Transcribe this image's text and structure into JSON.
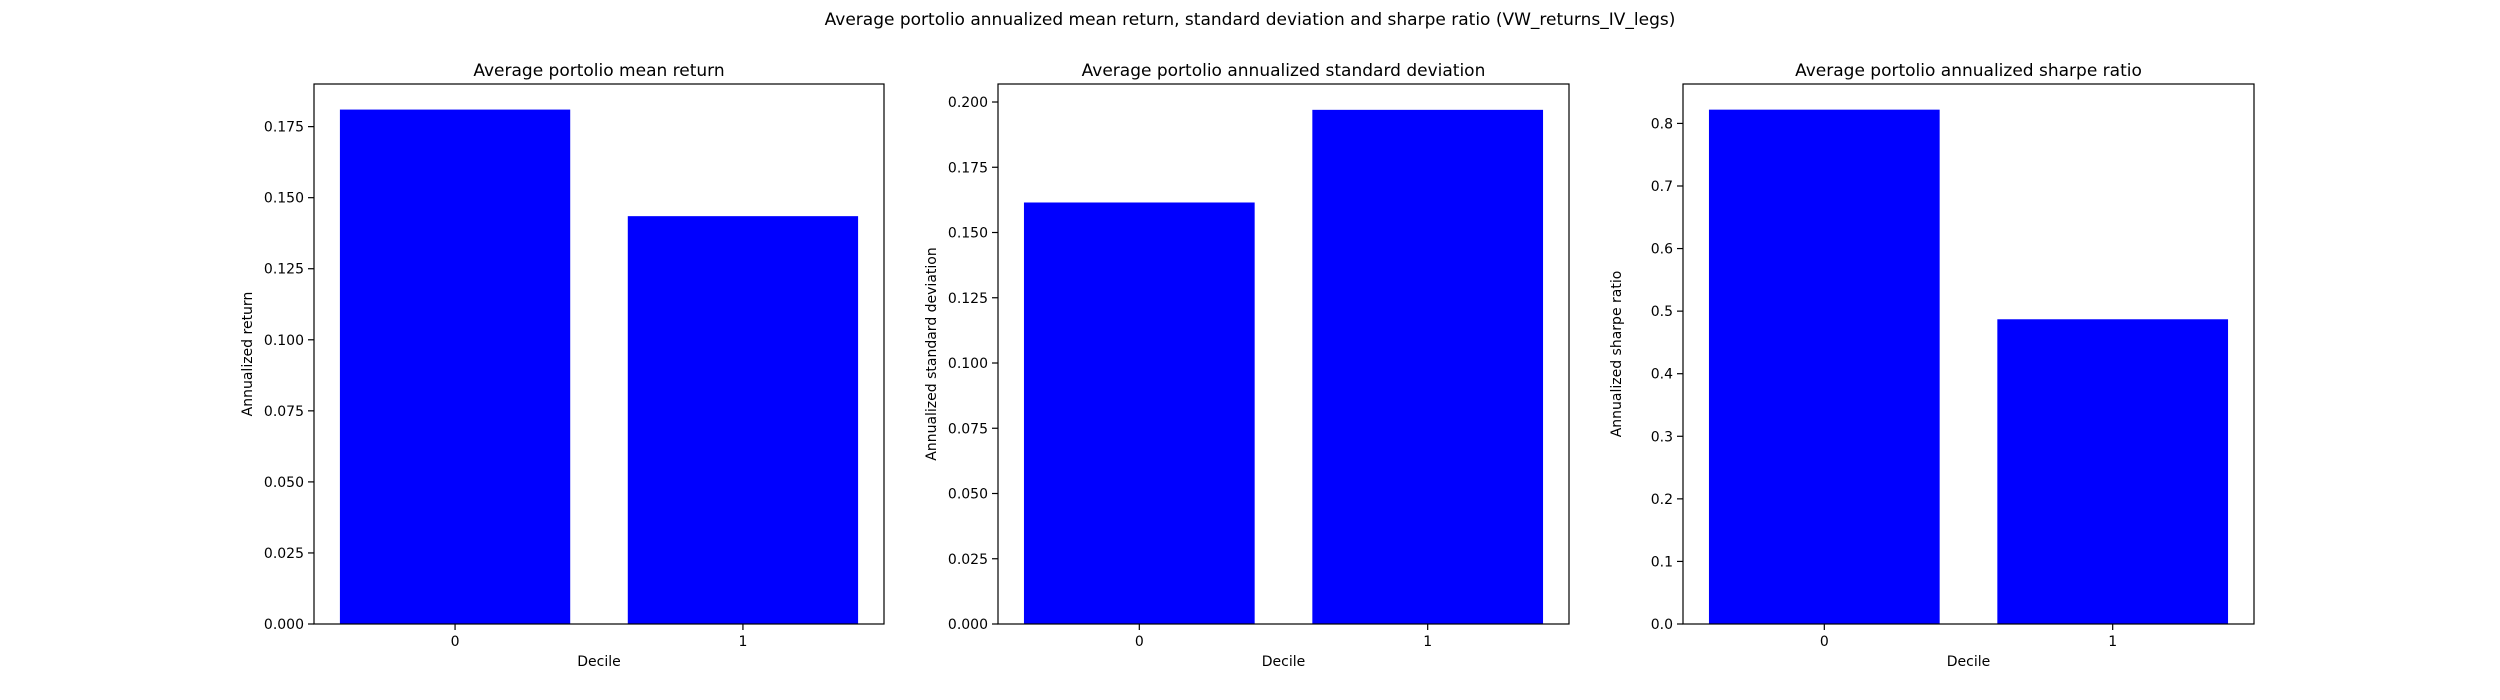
{
  "figure": {
    "suptitle": "Average portolio annualized mean return, standard deviation and sharpe ratio (VW_returns_IV_legs)"
  },
  "chart_data": [
    {
      "type": "bar",
      "title": "Average portolio mean return",
      "xlabel": "Decile",
      "ylabel": "Annualized return",
      "categories": [
        "0",
        "1"
      ],
      "values": [
        0.181,
        0.1435
      ],
      "ylim": [
        0,
        0.19
      ],
      "yticks": [
        0.0,
        0.025,
        0.05,
        0.075,
        0.1,
        0.125,
        0.15,
        0.175
      ],
      "ytick_labels": [
        "0.000",
        "0.025",
        "0.050",
        "0.075",
        "0.100",
        "0.125",
        "0.150",
        "0.175"
      ],
      "bar_color": "#0000ff",
      "grid": false
    },
    {
      "type": "bar",
      "title": "Average portolio annualized standard deviation",
      "xlabel": "Decile",
      "ylabel": "Annualized standard deviation",
      "categories": [
        "0",
        "1"
      ],
      "values": [
        0.1615,
        0.197
      ],
      "ylim": [
        0,
        0.2069
      ],
      "yticks": [
        0.0,
        0.025,
        0.05,
        0.075,
        0.1,
        0.125,
        0.15,
        0.175,
        0.2
      ],
      "ytick_labels": [
        "0.000",
        "0.025",
        "0.050",
        "0.075",
        "0.100",
        "0.125",
        "0.150",
        "0.175",
        "0.200"
      ],
      "bar_color": "#0000ff",
      "grid": false
    },
    {
      "type": "bar",
      "title": "Average portolio annualized sharpe ratio",
      "xlabel": "Decile",
      "ylabel": "Annualized sharpe ratio",
      "categories": [
        "0",
        "1"
      ],
      "values": [
        0.822,
        0.487
      ],
      "ylim": [
        0,
        0.863
      ],
      "yticks": [
        0.0,
        0.1,
        0.2,
        0.3,
        0.4,
        0.5,
        0.6,
        0.7,
        0.8
      ],
      "ytick_labels": [
        "0.0",
        "0.1",
        "0.2",
        "0.3",
        "0.4",
        "0.5",
        "0.6",
        "0.7",
        "0.8"
      ],
      "bar_color": "#0000ff",
      "grid": false
    }
  ]
}
